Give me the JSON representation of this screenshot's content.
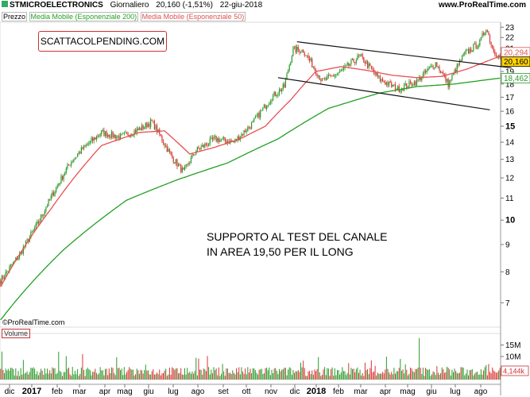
{
  "header": {
    "symbol": "STMICROELECTRONICS",
    "period": "Giornaliero",
    "last": "20,160 (-1,51%)",
    "date": "22-giu-2018",
    "site": "www.ProRealTime.com"
  },
  "legend": {
    "price": "Prezzo",
    "ma200": "Media Mobile (Esponenziale 200)",
    "ma50": "Media Mobile (Esponenziale 50)"
  },
  "watermark": "SCATTACOLPENDING.COM",
  "annotation": [
    "SUPPORTO AL TEST DEL CANALE",
    "IN AREA 19,50 PER IL LONG"
  ],
  "copyright": "©ProRealTime.com",
  "volume_label": "Volume",
  "chart_data": {
    "type": "candlestick",
    "y_ticks": [
      7,
      8,
      9,
      10,
      11,
      12,
      13,
      14,
      15,
      16,
      17,
      18,
      19,
      20,
      21,
      22,
      23
    ],
    "y_bold": [
      10,
      15,
      20
    ],
    "y_range": [
      6.3,
      23.5
    ],
    "x_labels": [
      "dic",
      "2017",
      "feb",
      "mar",
      "apr",
      "mag",
      "giu",
      "lug",
      "ago",
      "set",
      "ott",
      "nov",
      "dic",
      "2018",
      "feb",
      "mar",
      "apr",
      "mag",
      "giu",
      "lug",
      "ago"
    ],
    "price_anchors": [
      [
        0,
        7.7
      ],
      [
        15,
        8.6
      ],
      [
        30,
        9.9
      ],
      [
        45,
        11.6
      ],
      [
        55,
        12.8
      ],
      [
        65,
        13.6
      ],
      [
        80,
        14.6
      ],
      [
        95,
        14.3
      ],
      [
        110,
        14.8
      ],
      [
        120,
        15.3
      ],
      [
        135,
        13.2
      ],
      [
        145,
        12.3
      ],
      [
        155,
        13.5
      ],
      [
        170,
        14.2
      ],
      [
        185,
        14.0
      ],
      [
        200,
        15.2
      ],
      [
        215,
        17.0
      ],
      [
        225,
        17.8
      ],
      [
        232,
        20.9
      ],
      [
        240,
        20.8
      ],
      [
        255,
        18.2
      ],
      [
        270,
        19.0
      ],
      [
        285,
        20.3
      ],
      [
        300,
        18.4
      ],
      [
        315,
        17.6
      ],
      [
        330,
        18.2
      ],
      [
        345,
        19.7
      ],
      [
        355,
        18.0
      ],
      [
        368,
        20.5
      ],
      [
        380,
        21.5
      ],
      [
        385,
        23.0
      ],
      [
        390,
        21.0
      ],
      [
        396,
        20.16
      ]
    ],
    "ma50_anchors": [
      [
        0,
        7.5
      ],
      [
        40,
        10.5
      ],
      [
        80,
        13.8
      ],
      [
        110,
        14.6
      ],
      [
        130,
        14.7
      ],
      [
        150,
        13.3
      ],
      [
        170,
        13.7
      ],
      [
        190,
        14.2
      ],
      [
        210,
        15.0
      ],
      [
        230,
        16.8
      ],
      [
        250,
        19.0
      ],
      [
        270,
        19.4
      ],
      [
        290,
        19.1
      ],
      [
        310,
        18.7
      ],
      [
        330,
        18.5
      ],
      [
        350,
        18.6
      ],
      [
        370,
        19.2
      ],
      [
        396,
        20.294
      ]
    ],
    "ma200_anchors": [
      [
        0,
        6.5
      ],
      [
        50,
        8.8
      ],
      [
        100,
        10.9
      ],
      [
        140,
        11.9
      ],
      [
        180,
        12.8
      ],
      [
        220,
        14.2
      ],
      [
        260,
        16.2
      ],
      [
        300,
        17.3
      ],
      [
        330,
        17.8
      ],
      [
        360,
        18.0
      ],
      [
        396,
        18.462
      ]
    ],
    "channel": {
      "upper": [
        [
          235,
          21.6
        ],
        [
          405,
          19.3
        ]
      ],
      "lower": [
        [
          220,
          18.5
        ],
        [
          388,
          16.1
        ]
      ]
    },
    "price_labels": [
      {
        "value": 20.294,
        "label": "20,294",
        "color": "#e05555"
      },
      {
        "value": 20.16,
        "label": "20,160",
        "color": "#000000"
      },
      {
        "value": 18.462,
        "label": "18,462",
        "color": "#2a9a2a"
      }
    ],
    "volume_ticks": [
      "15M",
      "10M"
    ],
    "volume_last": "4,144k",
    "colors": {
      "up": "#2a9a2a",
      "down": "#dd3333",
      "ma50": "#e85050",
      "ma200": "#22a022",
      "channel": "#111111"
    }
  }
}
